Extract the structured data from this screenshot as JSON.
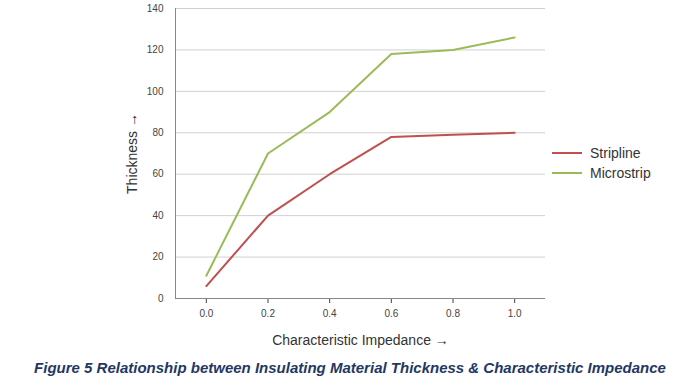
{
  "chart_data": {
    "type": "line",
    "caption": "Figure 5 Relationship between Insulating Material Thickness & Characteristic Impedance",
    "x_label": "Characteristic Impedance",
    "y_label": "Thickness",
    "x": [
      0,
      0.2,
      0.4,
      0.6,
      0.8,
      1
    ],
    "series": [
      {
        "name": "Stripline",
        "color": "#c0504d",
        "values": [
          6,
          40,
          60,
          78,
          79,
          80
        ]
      },
      {
        "name": "Microstrip",
        "color": "#9bbb59",
        "values": [
          11,
          70,
          90,
          118,
          120,
          126
        ]
      }
    ],
    "xlim": [
      -0.1,
      1.1
    ],
    "xticks": [
      0,
      0.2,
      0.4,
      0.6,
      0.8,
      1
    ],
    "ylim": [
      0,
      140
    ],
    "yticks": [
      0,
      20,
      40,
      60,
      80,
      100,
      120,
      140
    ],
    "grid": true,
    "legend": "right"
  }
}
